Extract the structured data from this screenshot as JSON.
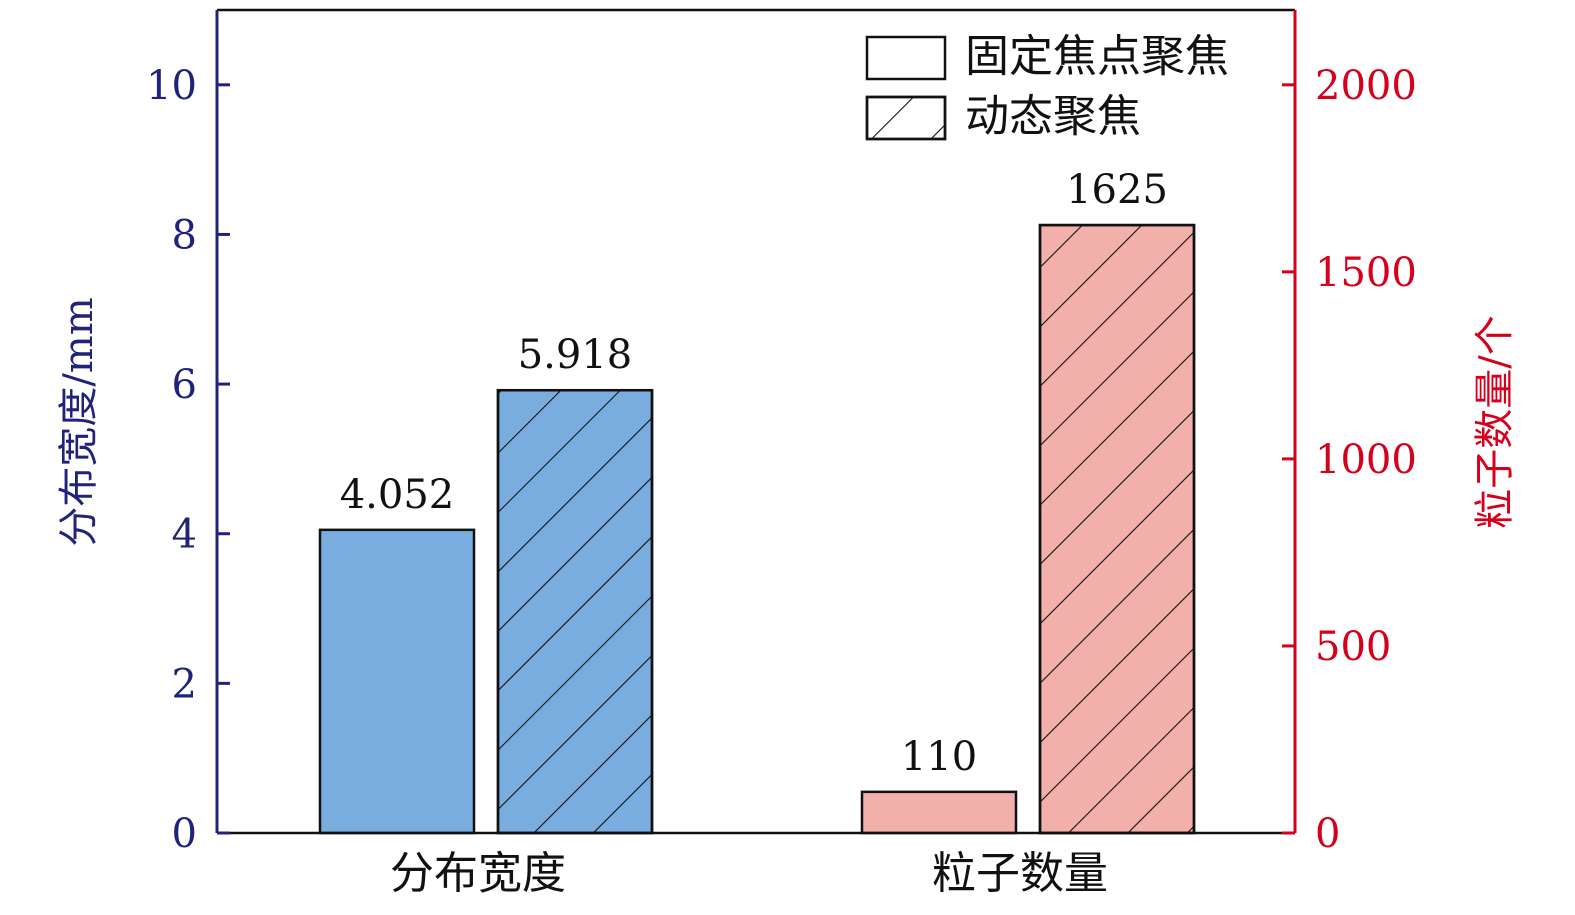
{
  "chart_data": {
    "type": "bar",
    "categories": [
      "分布宽度",
      "粒子数量"
    ],
    "series": [
      {
        "name": "固定焦点聚焦",
        "pattern": "none",
        "values": [
          4.052,
          110
        ],
        "labels": [
          "4.052",
          "110"
        ]
      },
      {
        "name": "动态聚焦",
        "pattern": "hatch",
        "values": [
          5.918,
          1625
        ],
        "labels": [
          "5.918",
          "1625"
        ]
      }
    ],
    "category_axis": [
      "left",
      "right"
    ],
    "left_axis": {
      "label": "分布宽度/mm",
      "ylim": [
        0,
        11
      ],
      "ticks": [
        0,
        2,
        4,
        6,
        8,
        10
      ],
      "color": "#1f237a"
    },
    "right_axis": {
      "label": "粒子数量/个",
      "ylim": [
        0,
        2200
      ],
      "ticks": [
        0,
        500,
        1000,
        1500,
        2000
      ],
      "color": "#d6001c"
    },
    "category_colors": [
      "#7aaddf",
      "#f3b0ab"
    ],
    "legend_position": "top-right",
    "grid": false
  }
}
